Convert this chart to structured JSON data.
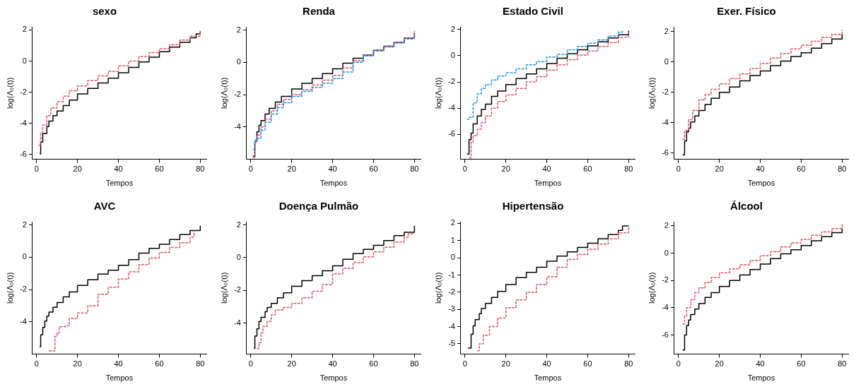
{
  "chart_data": [
    {
      "type": "step",
      "title": "sexo",
      "xlabel": "Tempos",
      "ylabel": "log(Λ₀(t))",
      "xlim": [
        -2,
        83
      ],
      "xticks": [
        0,
        20,
        40,
        60,
        80
      ],
      "ylim": [
        -6.3,
        2.2
      ],
      "yticks": [
        -6,
        -4,
        -2,
        0,
        2
      ],
      "series": [
        {
          "color": "#000000",
          "line_style": "solid",
          "x": [
            1.5,
            2,
            3,
            5,
            6,
            8,
            10,
            13,
            16,
            20,
            25,
            30,
            35,
            40,
            45,
            50,
            55,
            60,
            65,
            70,
            75,
            78,
            80
          ],
          "values": [
            -5.95,
            -5.2,
            -4.65,
            -4.2,
            -3.85,
            -3.5,
            -3.2,
            -2.85,
            -2.5,
            -2.1,
            -1.75,
            -1.4,
            -1.1,
            -0.75,
            -0.4,
            -0.05,
            0.25,
            0.6,
            0.9,
            1.2,
            1.5,
            1.75,
            1.9
          ]
        },
        {
          "color": "#df536b",
          "line_style": "dashed",
          "x": [
            1,
            2,
            3,
            5,
            7,
            10,
            13,
            16,
            20,
            25,
            30,
            35,
            40,
            45,
            50,
            55,
            60,
            65,
            70,
            75,
            80
          ],
          "values": [
            -5.4,
            -4.6,
            -4.1,
            -3.5,
            -3.0,
            -2.6,
            -2.25,
            -1.9,
            -1.6,
            -1.25,
            -0.95,
            -0.65,
            -0.3,
            0,
            0.3,
            0.55,
            0.8,
            1.05,
            1.35,
            1.6,
            1.95
          ]
        }
      ]
    },
    {
      "type": "step",
      "title": "Renda",
      "xlabel": "Tempos",
      "ylabel": "log(Λ₀(t))",
      "xlim": [
        -2,
        83
      ],
      "xticks": [
        0,
        20,
        40,
        60,
        80
      ],
      "ylim": [
        -6.0,
        2.2
      ],
      "yticks": [
        -4,
        -2,
        0,
        2
      ],
      "series": [
        {
          "color": "#000000",
          "line_style": "solid",
          "x": [
            1,
            2,
            3,
            4,
            5,
            7,
            9,
            12,
            15,
            20,
            25,
            30,
            35,
            40,
            45,
            50,
            55,
            60,
            65,
            70,
            75,
            80
          ],
          "values": [
            -5.8,
            -4.9,
            -4.3,
            -3.9,
            -3.6,
            -3.2,
            -2.85,
            -2.45,
            -2.1,
            -1.65,
            -1.3,
            -1.0,
            -0.7,
            -0.4,
            -0.05,
            0.25,
            0.45,
            0.75,
            1.0,
            1.25,
            1.5,
            1.85
          ]
        },
        {
          "color": "#df536b",
          "line_style": "dashed",
          "x": [
            1,
            2,
            3,
            5,
            7,
            10,
            13,
            16,
            20,
            25,
            30,
            35,
            40,
            45,
            50,
            55,
            60,
            65,
            70,
            75,
            80
          ],
          "values": [
            -5.9,
            -4.9,
            -4.5,
            -4.0,
            -3.5,
            -3.0,
            -2.6,
            -2.3,
            -2.0,
            -1.7,
            -1.4,
            -1.1,
            -0.8,
            -0.35,
            0.1,
            0.45,
            0.75,
            1.0,
            1.25,
            1.5,
            1.95
          ]
        },
        {
          "color": "#2297e6",
          "line_style": "dashed",
          "x": [
            1,
            2,
            3,
            5,
            7,
            10,
            13,
            16,
            20,
            25,
            30,
            35,
            40,
            45,
            50,
            55,
            60,
            65,
            70,
            75,
            80
          ],
          "values": [
            -5.4,
            -4.8,
            -4.7,
            -4.2,
            -3.7,
            -3.2,
            -2.8,
            -2.5,
            -2.1,
            -1.8,
            -1.55,
            -1.3,
            -1.0,
            -0.6,
            0.0,
            0.4,
            0.7,
            0.95,
            1.2,
            1.45,
            1.7
          ]
        }
      ]
    },
    {
      "type": "step",
      "title": "Estado Civil",
      "xlabel": "Tempos",
      "ylabel": "log(Λ₀(t))",
      "xlim": [
        -2,
        83
      ],
      "xticks": [
        0,
        20,
        40,
        60,
        80
      ],
      "ylim": [
        -7.9,
        2.2
      ],
      "yticks": [
        -6,
        -4,
        -2,
        0,
        2
      ],
      "series": [
        {
          "color": "#000000",
          "line_style": "solid",
          "x": [
            1,
            2,
            3,
            4,
            6,
            8,
            10,
            13,
            16,
            20,
            25,
            30,
            35,
            40,
            45,
            50,
            55,
            60,
            65,
            70,
            75,
            80
          ],
          "values": [
            -7.5,
            -6.4,
            -5.9,
            -5.2,
            -4.6,
            -4.1,
            -3.7,
            -3.1,
            -2.7,
            -2.2,
            -1.75,
            -1.4,
            -1.0,
            -0.6,
            -0.2,
            0.15,
            0.45,
            0.75,
            1.05,
            1.35,
            1.6,
            1.9
          ]
        },
        {
          "color": "#df536b",
          "line_style": "dashed",
          "x": [
            2,
            3,
            4,
            6,
            8,
            10,
            13,
            16,
            20,
            25,
            30,
            35,
            40,
            45,
            50,
            55,
            60,
            65,
            70,
            75,
            80
          ],
          "values": [
            -7.8,
            -6.6,
            -6.1,
            -5.6,
            -5.1,
            -4.6,
            -4.0,
            -3.5,
            -3.0,
            -2.5,
            -2.0,
            -1.6,
            -1.1,
            -0.7,
            -0.3,
            0.05,
            0.35,
            0.7,
            1.0,
            1.4,
            1.85
          ]
        },
        {
          "color": "#2297e6",
          "line_style": "dashed",
          "x": [
            1,
            2,
            4,
            6,
            8,
            10,
            13,
            16,
            20,
            25,
            30,
            35,
            40,
            45,
            50,
            55,
            60,
            65,
            70,
            75,
            77
          ],
          "values": [
            -4.85,
            -4.7,
            -3.6,
            -2.9,
            -2.5,
            -2.2,
            -1.85,
            -1.55,
            -1.3,
            -1.0,
            -0.7,
            -0.45,
            -0.1,
            0.1,
            0.45,
            0.7,
            0.95,
            1.2,
            1.5,
            1.8,
            1.95
          ]
        }
      ]
    },
    {
      "type": "step",
      "title": "Exer. Físico",
      "xlabel": "Tempos",
      "ylabel": "log(Λ₀(t))",
      "xlim": [
        -2,
        83
      ],
      "xticks": [
        0,
        20,
        40,
        60,
        80
      ],
      "ylim": [
        -6.4,
        2.3
      ],
      "yticks": [
        -6,
        -4,
        -2,
        0,
        2
      ],
      "series": [
        {
          "color": "#000000",
          "line_style": "solid",
          "x": [
            2,
            3,
            4,
            5,
            6,
            8,
            10,
            13,
            16,
            20,
            25,
            30,
            35,
            40,
            45,
            50,
            55,
            60,
            65,
            70,
            75,
            80
          ],
          "values": [
            -6.1,
            -5.2,
            -4.6,
            -4.35,
            -3.95,
            -3.55,
            -3.2,
            -2.8,
            -2.4,
            -2.0,
            -1.65,
            -1.25,
            -0.9,
            -0.6,
            -0.25,
            0.05,
            0.35,
            0.6,
            0.9,
            1.2,
            1.5,
            1.85
          ]
        },
        {
          "color": "#df536b",
          "line_style": "dashed",
          "x": [
            2,
            3,
            5,
            7,
            10,
            13,
            16,
            20,
            25,
            30,
            35,
            40,
            45,
            50,
            55,
            60,
            65,
            70,
            75,
            80
          ],
          "values": [
            -5.1,
            -4.5,
            -3.8,
            -3.2,
            -2.5,
            -2.15,
            -1.8,
            -1.45,
            -1.1,
            -0.8,
            -0.45,
            -0.1,
            0.25,
            0.55,
            0.85,
            1.1,
            1.35,
            1.6,
            1.8,
            2.1
          ]
        }
      ]
    },
    {
      "type": "step",
      "title": "AVC",
      "xlabel": "Tempos",
      "ylabel": "log(Λ₀(t))",
      "xlim": [
        -2,
        83
      ],
      "xticks": [
        0,
        20,
        40,
        60,
        80
      ],
      "ylim": [
        -6.0,
        2.2
      ],
      "yticks": [
        -4,
        -2,
        0,
        2
      ],
      "series": [
        {
          "color": "#000000",
          "line_style": "solid",
          "x": [
            1.5,
            2,
            3,
            4,
            5,
            6,
            8,
            10,
            13,
            16,
            20,
            25,
            30,
            35,
            40,
            45,
            50,
            55,
            60,
            65,
            70,
            75,
            80
          ],
          "values": [
            -5.55,
            -4.8,
            -4.35,
            -3.95,
            -3.65,
            -3.4,
            -3.1,
            -2.8,
            -2.45,
            -2.15,
            -1.75,
            -1.4,
            -1.05,
            -0.8,
            -0.5,
            -0.15,
            0.25,
            0.55,
            0.8,
            1.1,
            1.4,
            1.65,
            1.95
          ]
        },
        {
          "color": "#df536b",
          "line_style": "dashed",
          "x": [
            6,
            8,
            9,
            10,
            11,
            14,
            16,
            20,
            25,
            30,
            35,
            40,
            45,
            50,
            55,
            60,
            65,
            70,
            75,
            77
          ],
          "values": [
            -5.8,
            -5.8,
            -4.9,
            -4.7,
            -4.3,
            -4.25,
            -3.8,
            -3.45,
            -3.0,
            -2.3,
            -1.85,
            -1.35,
            -0.9,
            -0.45,
            -0.05,
            0.3,
            0.6,
            0.9,
            1.25,
            1.65
          ]
        }
      ]
    },
    {
      "type": "step",
      "title": "Doença Pulmão",
      "xlabel": "Tempos",
      "ylabel": "log(Λ₀(t))",
      "xlim": [
        -2,
        83
      ],
      "xticks": [
        0,
        20,
        40,
        60,
        80
      ],
      "ylim": [
        -5.9,
        2.2
      ],
      "yticks": [
        -4,
        -2,
        0,
        2
      ],
      "series": [
        {
          "color": "#000000",
          "line_style": "solid",
          "x": [
            1.5,
            2,
            3,
            4,
            5,
            7,
            8,
            10,
            13,
            16,
            20,
            25,
            30,
            35,
            40,
            45,
            50,
            55,
            60,
            65,
            70,
            75,
            80
          ],
          "values": [
            -5.55,
            -4.8,
            -4.35,
            -3.9,
            -3.65,
            -3.3,
            -3.05,
            -2.8,
            -2.45,
            -2.15,
            -1.75,
            -1.4,
            -1.1,
            -0.8,
            -0.5,
            -0.1,
            0.25,
            0.5,
            0.75,
            1.05,
            1.35,
            1.55,
            1.95
          ]
        },
        {
          "color": "#df536b",
          "line_style": "dashed",
          "x": [
            3,
            4,
            5,
            6,
            8,
            10,
            12,
            16,
            20,
            25,
            30,
            35,
            40,
            45,
            50,
            55,
            60,
            65,
            70,
            75,
            77,
            80
          ],
          "values": [
            -5.55,
            -5.2,
            -4.6,
            -4.2,
            -3.9,
            -3.5,
            -3.2,
            -3.05,
            -2.8,
            -2.45,
            -2.05,
            -1.65,
            -1.0,
            -0.65,
            -0.3,
            0.05,
            0.35,
            0.65,
            0.95,
            1.25,
            1.45,
            1.45
          ]
        }
      ]
    },
    {
      "type": "step",
      "title": "Hipertensão",
      "xlabel": "Tempos",
      "ylabel": "log(Λ₀(t))",
      "xlim": [
        -2,
        83
      ],
      "xticks": [
        0,
        20,
        40,
        60,
        80
      ],
      "ylim": [
        -5.6,
        2.1
      ],
      "yticks": [
        -5,
        -4,
        -3,
        -2,
        -1,
        0,
        1,
        2
      ],
      "series": [
        {
          "color": "#000000",
          "line_style": "solid",
          "x": [
            1.5,
            3,
            4,
            5,
            7,
            8,
            10,
            13,
            16,
            20,
            25,
            30,
            35,
            40,
            45,
            50,
            55,
            60,
            65,
            70,
            75,
            77,
            80
          ],
          "values": [
            -5.25,
            -4.45,
            -3.95,
            -3.6,
            -3.25,
            -2.95,
            -2.65,
            -2.3,
            -1.95,
            -1.55,
            -1.15,
            -0.85,
            -0.55,
            -0.2,
            0.1,
            0.35,
            0.6,
            0.85,
            1.1,
            1.35,
            1.6,
            1.85,
            1.85
          ]
        },
        {
          "color": "#df536b",
          "line_style": "dashed",
          "x": [
            6,
            7,
            9,
            12,
            16,
            20,
            25,
            30,
            35,
            40,
            45,
            50,
            55,
            60,
            65,
            70,
            75,
            80
          ],
          "values": [
            -5.4,
            -5.0,
            -4.5,
            -4.0,
            -3.5,
            -2.9,
            -2.45,
            -2.0,
            -1.55,
            -1.1,
            -0.55,
            -0.1,
            0.2,
            0.5,
            0.8,
            1.1,
            1.45,
            1.85
          ]
        }
      ]
    },
    {
      "type": "step",
      "title": "Álcool",
      "xlabel": "Tempos",
      "ylabel": "log(Λ₀(t))",
      "xlim": [
        -2,
        83
      ],
      "xticks": [
        0,
        20,
        40,
        60,
        80
      ],
      "ylim": [
        -7.4,
        2.3
      ],
      "yticks": [
        -6,
        -4,
        -2,
        0,
        2
      ],
      "series": [
        {
          "color": "#000000",
          "line_style": "solid",
          "x": [
            2,
            3,
            4,
            5,
            6,
            8,
            10,
            13,
            16,
            20,
            25,
            30,
            35,
            40,
            45,
            50,
            55,
            60,
            65,
            70,
            75,
            80
          ],
          "values": [
            -7.1,
            -6.0,
            -5.3,
            -4.9,
            -4.5,
            -4.1,
            -3.7,
            -3.25,
            -2.9,
            -2.45,
            -2.0,
            -1.6,
            -1.2,
            -0.8,
            -0.4,
            -0.05,
            0.25,
            0.55,
            0.9,
            1.2,
            1.5,
            1.85
          ]
        },
        {
          "color": "#df536b",
          "line_style": "dashed",
          "x": [
            2,
            3,
            4,
            6,
            8,
            10,
            13,
            16,
            20,
            25,
            30,
            35,
            40,
            45,
            50,
            55,
            60,
            65,
            70,
            75,
            80
          ],
          "values": [
            -5.2,
            -4.6,
            -4.0,
            -3.4,
            -2.9,
            -2.55,
            -2.15,
            -1.8,
            -1.45,
            -1.15,
            -0.85,
            -0.55,
            -0.2,
            0.1,
            0.45,
            0.75,
            1.0,
            1.3,
            1.55,
            1.8,
            2.1
          ]
        }
      ]
    }
  ]
}
